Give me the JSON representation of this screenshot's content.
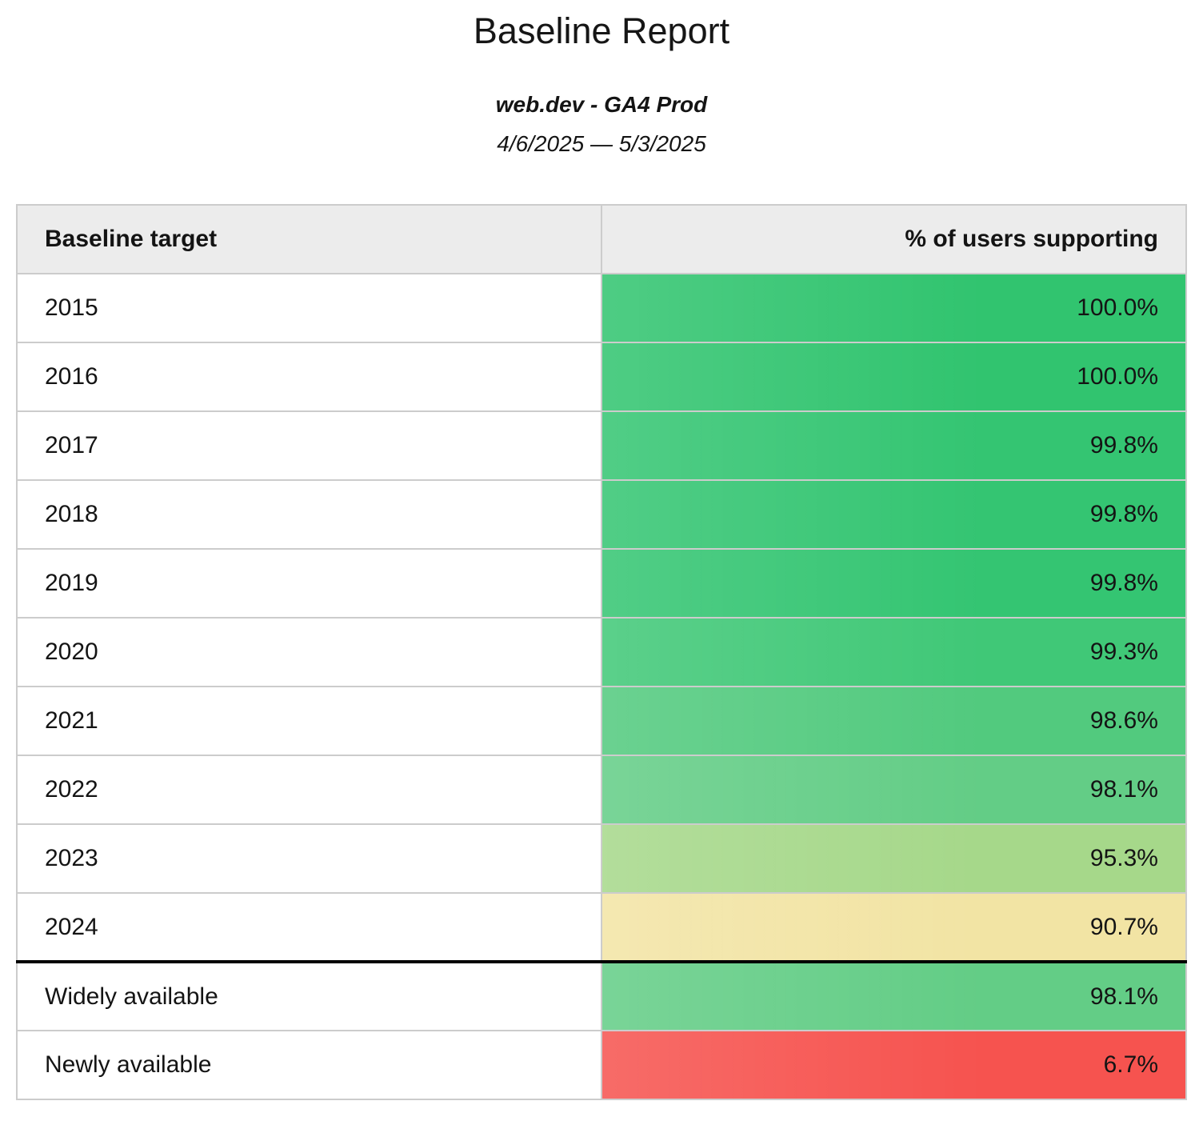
{
  "report": {
    "title": "Baseline Report",
    "subtitle": "web.dev - GA4 Prod",
    "date_range": "4/6/2025 — 5/3/2025"
  },
  "table": {
    "columns": [
      "Baseline target",
      "% of users supporting"
    ],
    "rows": [
      {
        "label": "2015",
        "value": "100.0%",
        "color": "#31c46f",
        "section_break": false
      },
      {
        "label": "2016",
        "value": "100.0%",
        "color": "#31c46f",
        "section_break": false
      },
      {
        "label": "2017",
        "value": "99.8%",
        "color": "#34c572",
        "section_break": false
      },
      {
        "label": "2018",
        "value": "99.8%",
        "color": "#34c572",
        "section_break": false
      },
      {
        "label": "2019",
        "value": "99.8%",
        "color": "#34c572",
        "section_break": false
      },
      {
        "label": "2020",
        "value": "99.3%",
        "color": "#40c877",
        "section_break": false
      },
      {
        "label": "2021",
        "value": "98.6%",
        "color": "#52ca7e",
        "section_break": false
      },
      {
        "label": "2022",
        "value": "98.1%",
        "color": "#63cd86",
        "section_break": false
      },
      {
        "label": "2023",
        "value": "95.3%",
        "color": "#a6d88a",
        "section_break": false
      },
      {
        "label": "2024",
        "value": "90.7%",
        "color": "#f2e4a4",
        "section_break": false
      },
      {
        "label": "Widely available",
        "value": "98.1%",
        "color": "#63cd86",
        "section_break": true
      },
      {
        "label": "Newly available",
        "value": "6.7%",
        "color": "#f6534f",
        "section_break": false
      }
    ]
  },
  "colors": {
    "header_background": "#ececec",
    "grid_border": "#cccccc",
    "section_divider": "#000000",
    "green_full": "#31c46f",
    "green_high": "#63cd86",
    "yellow_mid": "#f2e4a4",
    "red_low": "#f6534f",
    "text": "#141414"
  },
  "chart_data": {
    "type": "table",
    "title": "Baseline Report",
    "subtitle": "web.dev - GA4 Prod",
    "date_range": "4/6/2025 — 5/3/2025",
    "columns": [
      "Baseline target",
      "% of users supporting"
    ],
    "categories": [
      "2015",
      "2016",
      "2017",
      "2018",
      "2019",
      "2020",
      "2021",
      "2022",
      "2023",
      "2024",
      "Widely available",
      "Newly available"
    ],
    "values": [
      100.0,
      100.0,
      99.8,
      99.8,
      99.8,
      99.3,
      98.6,
      98.1,
      95.3,
      90.7,
      98.1,
      6.7
    ],
    "value_unit": "%",
    "layout_hints": {
      "value_column_alignment": "right",
      "color_scale": "heatmap by value: saturated green at 100% through pale green and pale yellow near 90% to red at low values",
      "section_break_before": "Widely available",
      "grid": "light gray cell borders, thick black rule under header and above Widely available"
    }
  }
}
